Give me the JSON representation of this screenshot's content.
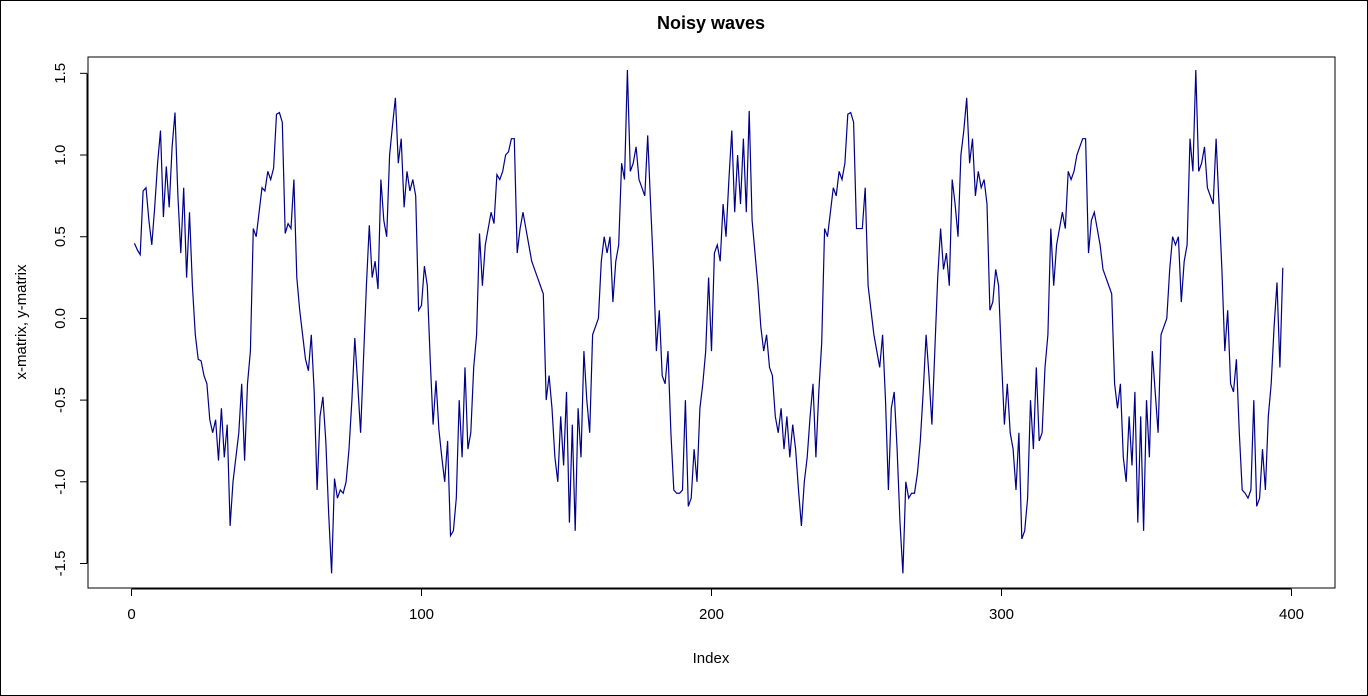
{
  "chart_data": {
    "type": "line",
    "title": "Noisy waves",
    "xlabel": "Index",
    "ylabel": "x-matrix, y-matrix",
    "xlim": [
      -15,
      415
    ],
    "ylim": [
      -1.65,
      1.6
    ],
    "x_ticks": [
      0,
      100,
      200,
      300,
      400
    ],
    "x_tick_labels": [
      "0",
      "100",
      "200",
      "300",
      "400"
    ],
    "y_ticks": [
      -1.5,
      -1.0,
      -0.5,
      0.0,
      0.5,
      1.0,
      1.5
    ],
    "y_tick_labels": [
      "-1.5",
      "-1.0",
      "-0.5",
      "0.0",
      "0.5",
      "1.0",
      "1.5"
    ],
    "grid": false,
    "line_color": "#00008b",
    "series": [
      {
        "values": [
          0.46,
          0.42,
          0.39,
          0.78,
          0.8,
          0.6,
          0.45,
          0.68,
          0.95,
          1.15,
          0.62,
          0.93,
          0.68,
          1.05,
          1.26,
          0.75,
          0.4,
          0.8,
          0.25,
          0.65,
          0.2,
          -0.1,
          -0.25,
          -0.26,
          -0.35,
          -0.4,
          -0.62,
          -0.7,
          -0.62,
          -0.87,
          -0.55,
          -0.85,
          -0.65,
          -1.27,
          -1.0,
          -0.85,
          -0.7,
          -0.4,
          -0.87,
          -0.4,
          -0.2,
          0.55,
          0.5,
          0.65,
          0.8,
          0.78,
          0.9,
          0.85,
          0.92,
          1.25,
          1.26,
          1.2,
          0.52,
          0.58,
          0.55,
          0.85,
          0.25,
          0.05,
          -0.1,
          -0.25,
          -0.32,
          -0.1,
          -0.45,
          -1.05,
          -0.6,
          -0.48,
          -0.75,
          -1.2,
          -1.56,
          -0.98,
          -1.1,
          -1.05,
          -1.07,
          -1.0,
          -0.8,
          -0.5,
          -0.12,
          -0.4,
          -0.7,
          -0.25,
          0.2,
          0.57,
          0.25,
          0.35,
          0.18,
          0.85,
          0.6,
          0.5,
          1.0,
          1.18,
          1.35,
          0.95,
          1.1,
          0.68,
          0.9,
          0.78,
          0.85,
          0.75,
          0.05,
          0.08,
          0.32,
          0.2,
          -0.25,
          -0.65,
          -0.38,
          -0.68,
          -0.85,
          -1.0,
          -0.75,
          -1.33,
          -1.3,
          -1.1,
          -0.5,
          -0.85,
          -0.3,
          -0.8,
          -0.7,
          -0.3,
          -0.1,
          0.52,
          0.2,
          0.45,
          0.55,
          0.65,
          0.58,
          0.88,
          0.85,
          0.9,
          1.0,
          1.02,
          1.1,
          1.1,
          0.4,
          0.55,
          0.65,
          0.55,
          0.45,
          0.35,
          0.3,
          0.25,
          0.2,
          0.15,
          -0.5,
          -0.35,
          -0.55,
          -0.85,
          -1.0,
          -0.6,
          -0.9,
          -0.45,
          -1.25,
          -0.65,
          -1.3,
          -0.55,
          -0.85,
          -0.2,
          -0.5,
          -0.7,
          -0.1,
          -0.05,
          0.0,
          0.35,
          0.5,
          0.4,
          0.5,
          0.1,
          0.35,
          0.45,
          0.95,
          0.85,
          1.52,
          0.9,
          0.95,
          1.05,
          0.85,
          0.8,
          0.75,
          1.12,
          0.7,
          0.3,
          -0.2,
          0.05,
          -0.35,
          -0.4,
          -0.2,
          -0.7,
          -1.05,
          -1.07,
          -1.07,
          -1.05,
          -0.5,
          -1.15,
          -1.1,
          -0.8,
          -1.0,
          -0.55,
          -0.4,
          -0.2,
          0.25,
          -0.2,
          0.4,
          0.45,
          0.35,
          0.7,
          0.5,
          0.85,
          1.15,
          0.65,
          1.0,
          0.7,
          1.1,
          0.65,
          1.27,
          0.6,
          0.4,
          0.2,
          -0.05,
          -0.2,
          -0.1,
          -0.3,
          -0.35,
          -0.6,
          -0.7,
          -0.55,
          -0.8,
          -0.6,
          -0.85,
          -0.65,
          -0.8,
          -1.05,
          -1.27,
          -1.0,
          -0.85,
          -0.6,
          -0.4,
          -0.85,
          -0.45,
          -0.15,
          0.55,
          0.5,
          0.65,
          0.8,
          0.75,
          0.9,
          0.85,
          0.95,
          1.25,
          1.26,
          1.2,
          0.55,
          0.55,
          0.55,
          0.8,
          0.2,
          0.05,
          -0.1,
          -0.2,
          -0.3,
          -0.1,
          -0.5,
          -1.05,
          -0.55,
          -0.45,
          -0.8,
          -1.25,
          -1.56,
          -1.0,
          -1.1,
          -1.07,
          -1.07,
          -0.95,
          -0.75,
          -0.45,
          -0.1,
          -0.35,
          -0.65,
          -0.2,
          0.25,
          0.55,
          0.3,
          0.4,
          0.2,
          0.85,
          0.7,
          0.5,
          1.0,
          1.15,
          1.35,
          0.95,
          1.1,
          0.75,
          0.9,
          0.8,
          0.85,
          0.7,
          0.05,
          0.1,
          0.3,
          0.2,
          -0.25,
          -0.65,
          -0.4,
          -0.7,
          -0.8,
          -1.05,
          -0.7,
          -1.35,
          -1.3,
          -1.1,
          -0.5,
          -0.8,
          -0.3,
          -0.75,
          -0.7,
          -0.3,
          -0.1,
          0.55,
          0.2,
          0.45,
          0.55,
          0.65,
          0.55,
          0.9,
          0.85,
          0.9,
          1.0,
          1.05,
          1.1,
          1.1,
          0.4,
          0.6,
          0.65,
          0.55,
          0.45,
          0.3,
          0.25,
          0.2,
          0.15,
          -0.4,
          -0.55,
          -0.4,
          -0.85,
          -1.0,
          -0.6,
          -0.9,
          -0.45,
          -1.25,
          -0.6,
          -1.3,
          -0.5,
          -0.85,
          -0.2,
          -0.45,
          -0.7,
          -0.1,
          -0.05,
          0.0,
          0.3,
          0.5,
          0.45,
          0.5,
          0.1,
          0.35,
          0.45,
          1.1,
          0.9,
          1.52,
          0.9,
          0.95,
          1.05,
          0.8,
          0.75,
          0.7,
          1.1,
          0.7,
          0.3,
          -0.2,
          0.05,
          -0.4,
          -0.45,
          -0.25,
          -0.7,
          -1.05,
          -1.07,
          -1.1,
          -1.05,
          -0.5,
          -1.15,
          -1.1,
          -0.8,
          -1.05,
          -0.6,
          -0.4,
          -0.05,
          0.22,
          -0.3,
          0.31
        ]
      }
    ]
  }
}
